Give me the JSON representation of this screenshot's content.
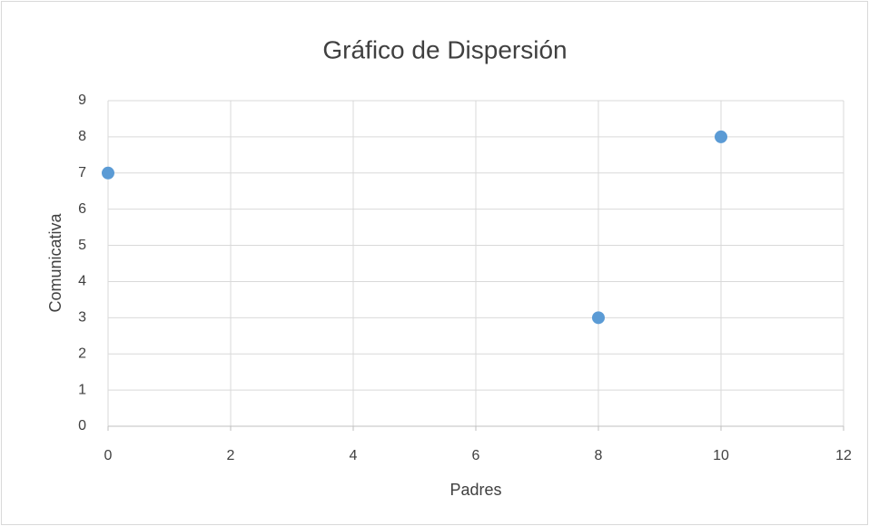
{
  "chart_data": {
    "type": "scatter",
    "title": "Gráfico de Dispersión",
    "x_label": "Padres",
    "y_label": "Comunicativa",
    "x": [
      0,
      8,
      10
    ],
    "values": [
      7,
      3,
      8
    ],
    "color": "#5b9bd5",
    "xlim": [
      0,
      12
    ],
    "xticks": [
      0,
      2,
      4,
      6,
      8,
      10,
      12
    ],
    "ylim": [
      0,
      9
    ],
    "yticks": [
      0,
      1,
      2,
      3,
      4,
      5,
      6,
      7,
      8,
      9
    ],
    "grid": true
  }
}
